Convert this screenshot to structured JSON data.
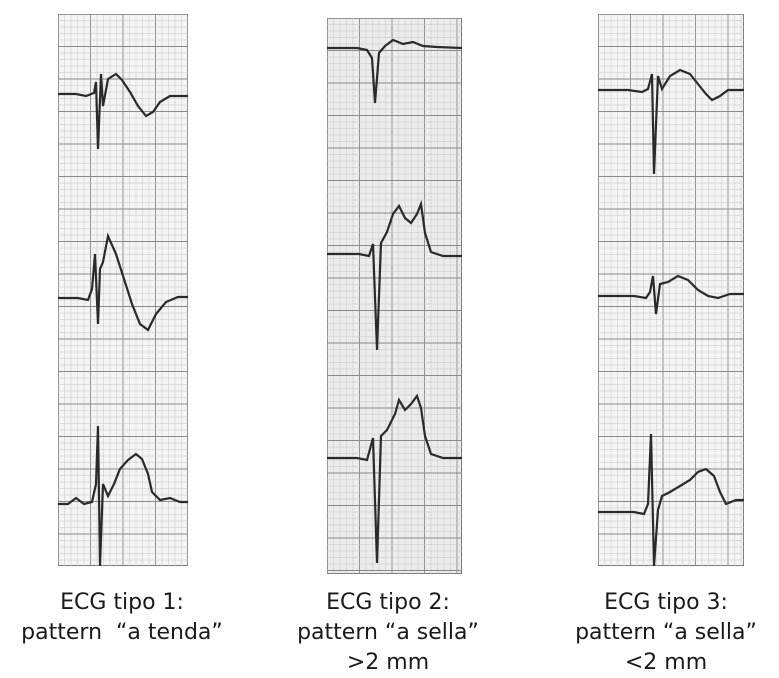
{
  "panels": [
    {
      "caption": [
        "ECG tipo 1:",
        "pattern  “a tenda”"
      ],
      "paper_color": "#f4f4f4",
      "ink_color": "#2a2a2a"
    },
    {
      "caption": [
        "ECG tipo 2:",
        "pattern “a sella”",
        ">2 mm"
      ],
      "paper_color": "#ececec",
      "ink_color": "#2a2a2a"
    },
    {
      "caption": [
        "ECG tipo 3:",
        "pattern “a sella”",
        "<2 mm"
      ],
      "paper_color": "#f4f4f4",
      "ink_color": "#2a2a2a"
    }
  ]
}
